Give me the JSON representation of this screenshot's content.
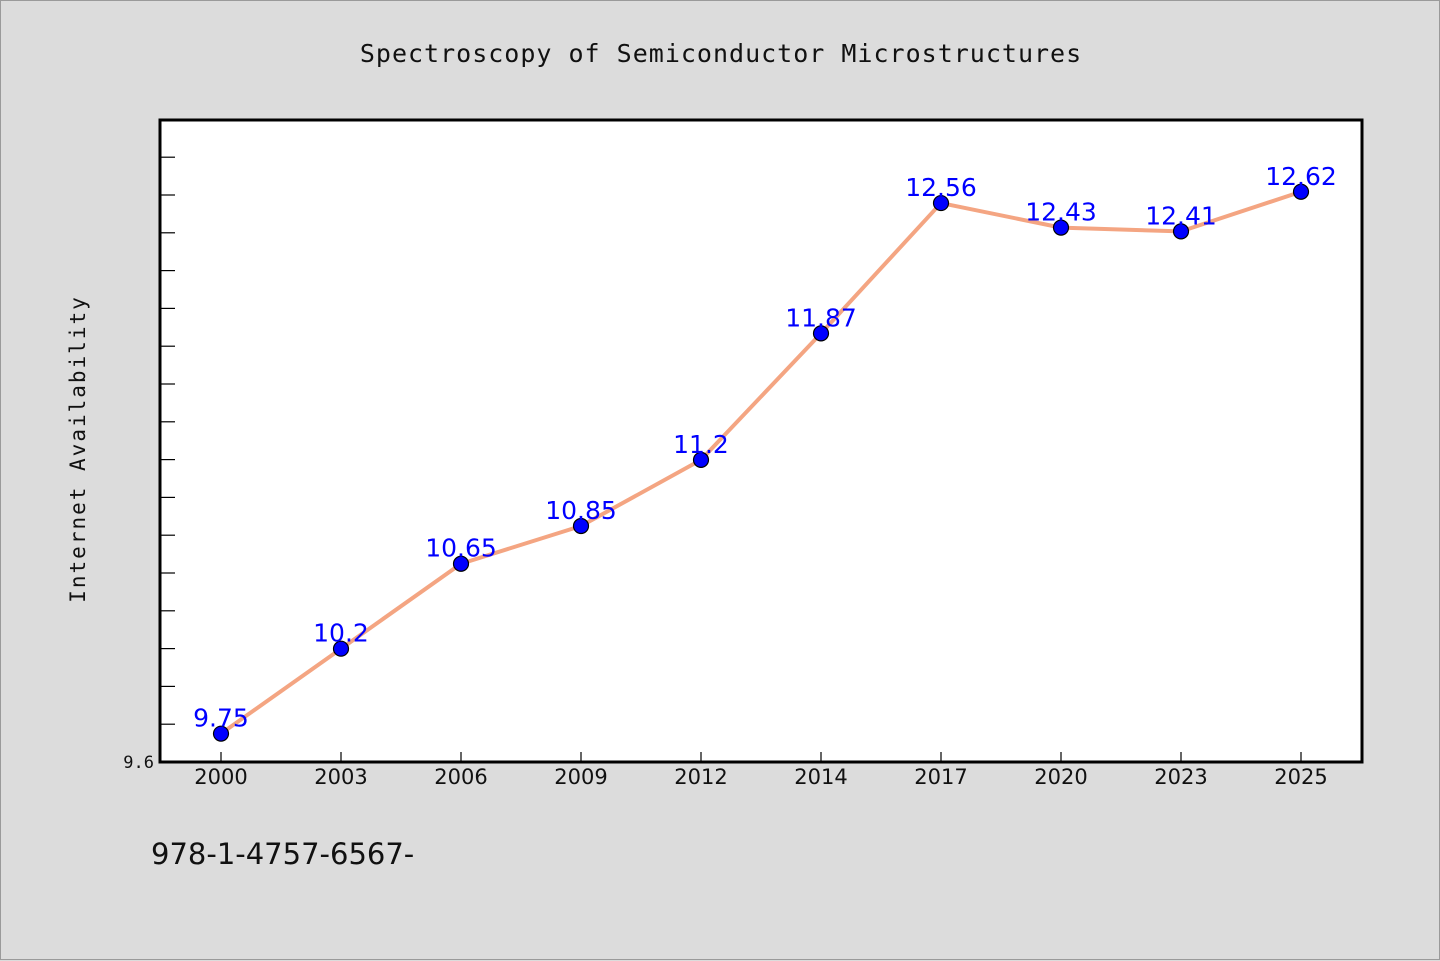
{
  "chart_data": {
    "type": "line",
    "title": "Spectroscopy of Semiconductor Microstructures",
    "xlabel": "",
    "ylabel": "Internet Availability",
    "categories": [
      "2000",
      "2003",
      "2006",
      "2009",
      "2012",
      "2014",
      "2017",
      "2020",
      "2023",
      "2025"
    ],
    "series": [
      {
        "values": [
          9.75,
          10.2,
          10.65,
          10.85,
          11.2,
          11.87,
          12.56,
          12.43,
          12.41,
          12.62
        ],
        "labels": [
          "9.75",
          "10.2",
          "10.65",
          "10.85",
          "11.2",
          "11.87",
          "12.56",
          "12.43",
          "12.41",
          "12.62"
        ],
        "line_color": "#f4a582",
        "marker_color": "#0000ff"
      }
    ],
    "ylim": [
      9.6,
      13.0
    ],
    "y_tick_labels": [
      "9.6"
    ],
    "grid": false,
    "legend": "none"
  },
  "footer": {
    "text": "978-1-4757-6567-"
  },
  "colors": {
    "background": "#dcdcdc",
    "plot_background": "#ffffff",
    "line": "#f4a582",
    "marker": "#0000ff",
    "data_label": "#0000ff"
  }
}
